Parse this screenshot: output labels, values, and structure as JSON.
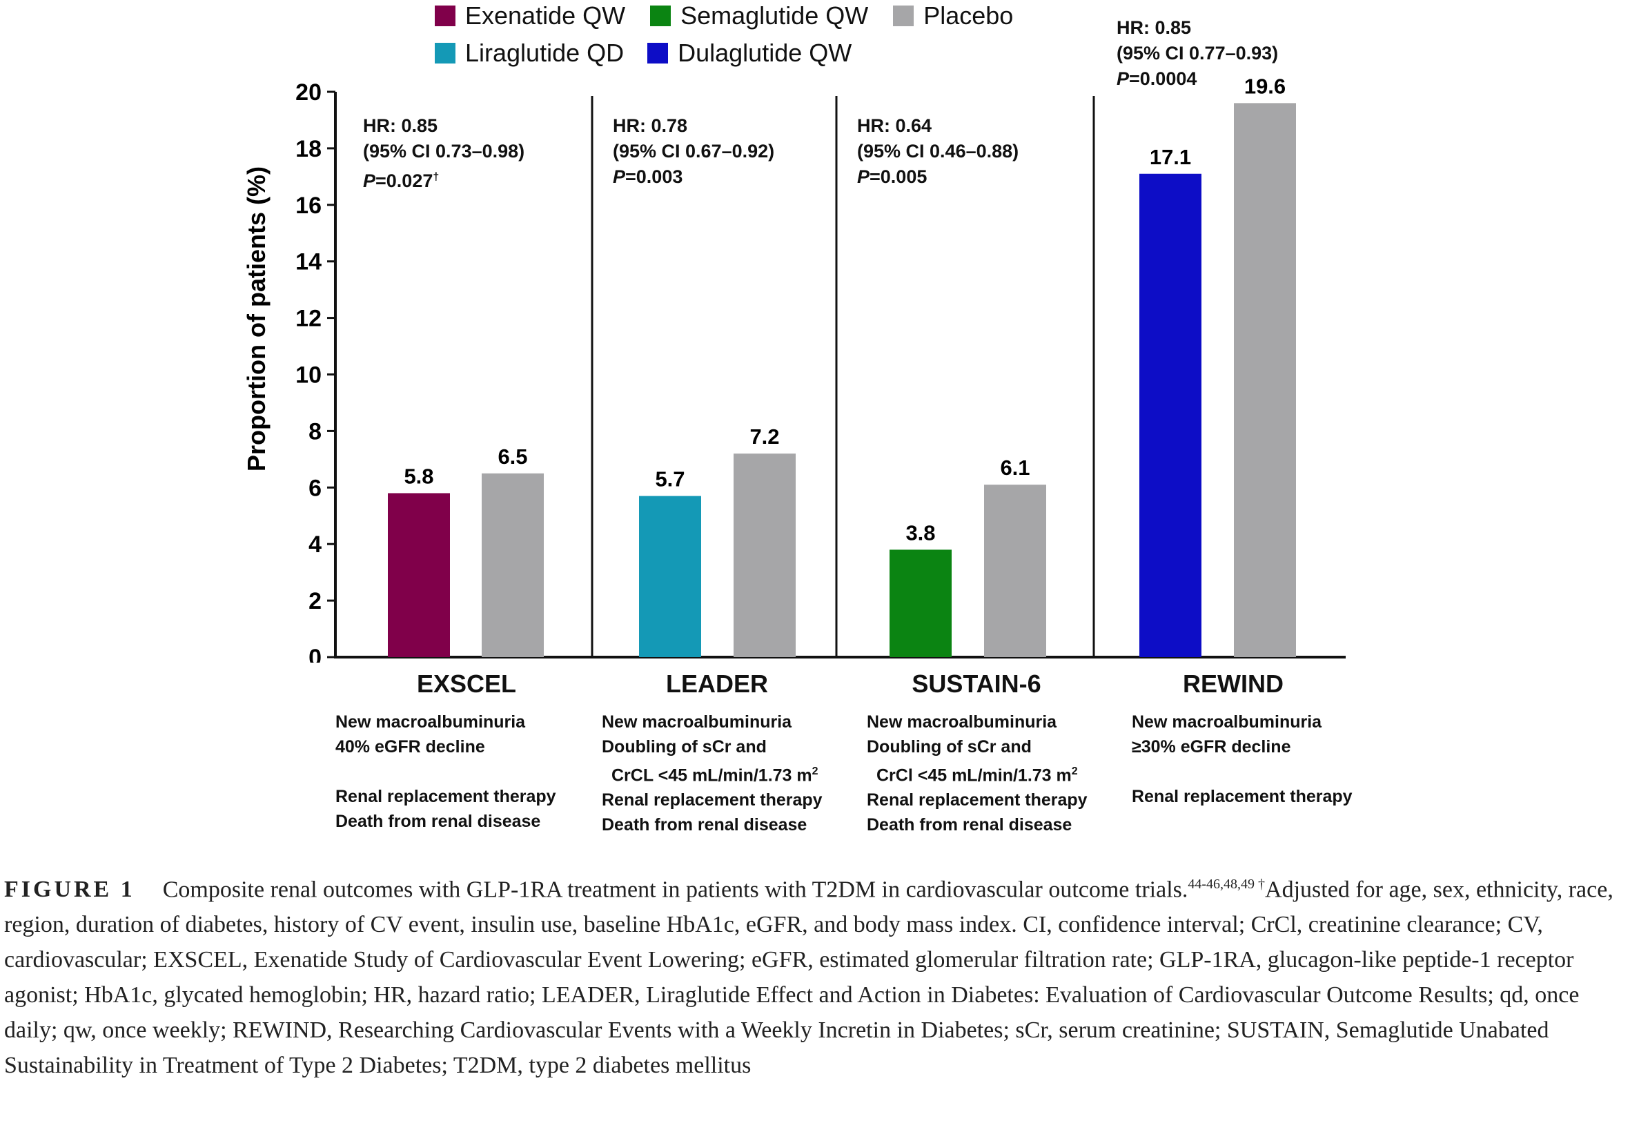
{
  "chart_data": {
    "type": "bar",
    "ylabel": "Proportion of patients (%)",
    "ylim": [
      0,
      20
    ],
    "yticks": [
      0,
      2,
      4,
      6,
      8,
      10,
      12,
      14,
      16,
      18,
      20
    ],
    "legend": [
      {
        "label": "Exenatide QW",
        "color": "#80004a"
      },
      {
        "label": "Semaglutide QW",
        "color": "#0b8412"
      },
      {
        "label": "Placebo",
        "color": "#a6a6a8"
      },
      {
        "label": "Liraglutide QD",
        "color": "#1499b6"
      },
      {
        "label": "Dulaglutide QW",
        "color": "#0d0dc6"
      }
    ],
    "groups": [
      {
        "trial": "EXSCEL",
        "bars": [
          {
            "series": "Exenatide QW",
            "value": 5.8,
            "label": "5.8",
            "color": "#80004a"
          },
          {
            "series": "Placebo",
            "value": 6.5,
            "label": "6.5",
            "color": "#a6a6a8"
          }
        ],
        "hr": {
          "line1": "HR: 0.85",
          "line2": "(95% CI 0.73–0.98)",
          "p_italic": "P",
          "p_rest": "=0.027",
          "p_sup": "†"
        },
        "outcomes": {
          "l1": "New macroalbuminuria",
          "l2": "40% eGFR decline",
          "l3": "",
          "l4": "Renal replacement therapy",
          "l5": "Death from renal disease"
        }
      },
      {
        "trial": "LEADER",
        "bars": [
          {
            "series": "Liraglutide QD",
            "value": 5.7,
            "label": "5.7",
            "color": "#1499b6"
          },
          {
            "series": "Placebo",
            "value": 7.2,
            "label": "7.2",
            "color": "#a6a6a8"
          }
        ],
        "hr": {
          "line1": "HR: 0.78",
          "line2": "(95% CI 0.67–0.92)",
          "p_italic": "P",
          "p_rest": "=0.003",
          "p_sup": ""
        },
        "outcomes": {
          "l1": "New macroalbuminuria",
          "l2": "Doubling of sCr and",
          "l3": "CrCL <45 mL/min/1.73 m",
          "l3_sup": "2",
          "l4": "Renal replacement therapy",
          "l5": "Death from renal disease"
        }
      },
      {
        "trial": "SUSTAIN-6",
        "bars": [
          {
            "series": "Semaglutide QW",
            "value": 3.8,
            "label": "3.8",
            "color": "#0b8412"
          },
          {
            "series": "Placebo",
            "value": 6.1,
            "label": "6.1",
            "color": "#a6a6a8"
          }
        ],
        "hr": {
          "line1": "HR: 0.64",
          "line2": "(95% CI 0.46–0.88)",
          "p_italic": "P",
          "p_rest": "=0.005",
          "p_sup": ""
        },
        "outcomes": {
          "l1": "New macroalbuminuria",
          "l2": "Doubling of sCr and",
          "l3": "CrCl <45 mL/min/1.73 m",
          "l3_sup": "2",
          "l4": "Renal replacement therapy",
          "l5": "Death from renal disease"
        }
      },
      {
        "trial": "REWIND",
        "bars": [
          {
            "series": "Dulaglutide QW",
            "value": 17.1,
            "label": "17.1",
            "color": "#0d0dc6"
          },
          {
            "series": "Placebo",
            "value": 19.6,
            "label": "19.6",
            "color": "#a6a6a8"
          }
        ],
        "hr": {
          "line1": "HR: 0.85",
          "line2": "(95% CI 0.77–0.93)",
          "p_italic": "P",
          "p_rest": "=0.0004",
          "p_sup": ""
        },
        "outcomes": {
          "l1": "New macroalbuminuria",
          "l2": "≥30% eGFR decline",
          "l3": "",
          "l4": "Renal replacement therapy",
          "l5": ""
        }
      }
    ]
  },
  "caption": {
    "label": "FIGURE 1",
    "text1": "Composite renal outcomes with GLP-1RA treatment in patients with T2DM in cardiovascular outcome trials.",
    "refs": "44-46,48,49",
    "dagger": " †",
    "text2": "Adjusted for age, sex, ethnicity, race, region, duration of diabetes, history of CV event, insulin use, baseline HbA1c, eGFR, and body mass index. CI, confidence interval; CrCl, creatinine clearance; CV, cardiovascular; EXSCEL, Exenatide Study of Cardiovascular Event Lowering; eGFR, estimated glomerular filtration rate; GLP-1RA, glucagon-like peptide-1 receptor agonist; HbA1c, glycated hemoglobin; HR, hazard ratio; LEADER, Liraglutide Effect and Action in Diabetes: Evaluation of Cardiovascular Outcome Results; qd, once daily; qw, once weekly; REWIND, Researching Cardiovascular Events with a Weekly Incretin in Diabetes; sCr, serum creatinine; SUSTAIN, Semaglutide Unabated Sustainability in Treatment of Type 2 Diabetes; T2DM, type 2 diabetes mellitus"
  }
}
